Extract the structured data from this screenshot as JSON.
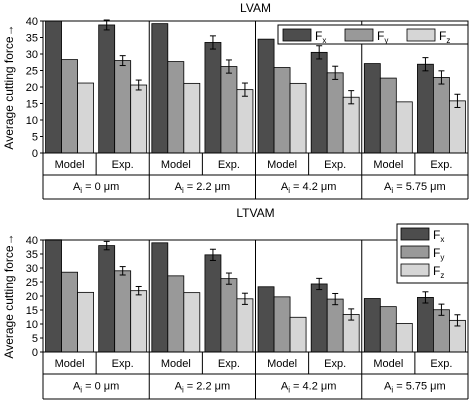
{
  "colors": {
    "fx": "#4d4d4d",
    "fy": "#999999",
    "fz": "#d6d6d6"
  },
  "chart_data": [
    {
      "type": "bar",
      "title": "LVAM",
      "ylabel": "Average cutting force→",
      "ylim": [
        0,
        40
      ],
      "yticks": [
        0,
        5,
        10,
        15,
        20,
        25,
        30,
        35,
        40
      ],
      "grid": false,
      "legend": {
        "position": "top-right",
        "layout": "horizontal"
      },
      "series_labels": [
        {
          "base": "F",
          "sub": "x"
        },
        {
          "base": "F",
          "sub": "y"
        },
        {
          "base": "F",
          "sub": "z"
        }
      ],
      "groups": [
        {
          "label": "A",
          "label_sub": "i",
          "label_rest": " = 0 μm",
          "subgroups": [
            {
              "label": "Model",
              "values": [
                40,
                28.3,
                21.2
              ],
              "errors": null
            },
            {
              "label": "Exp.",
              "values": [
                38.8,
                28,
                20.6
              ],
              "errors": [
                1.5,
                1.5,
                1.5
              ]
            }
          ]
        },
        {
          "label": "A",
          "label_sub": "i",
          "label_rest": " = 2.2 μm",
          "subgroups": [
            {
              "label": "Model",
              "values": [
                39.2,
                27.7,
                21.1
              ],
              "errors": null
            },
            {
              "label": "Exp.",
              "values": [
                33.5,
                26.2,
                19.2
              ],
              "errors": [
                2,
                2,
                2
              ]
            }
          ]
        },
        {
          "label": "A",
          "label_sub": "i",
          "label_rest": " = 4.2 μm",
          "subgroups": [
            {
              "label": "Model",
              "values": [
                34.5,
                25.9,
                21.1
              ],
              "errors": null
            },
            {
              "label": "Exp.",
              "values": [
                30.5,
                24.3,
                16.9
              ],
              "errors": [
                2,
                2,
                2
              ]
            }
          ]
        },
        {
          "label": "A",
          "label_sub": "i",
          "label_rest": " = 5.75 μm",
          "subgroups": [
            {
              "label": "Model",
              "values": [
                27.1,
                22.7,
                15.5
              ],
              "errors": null
            },
            {
              "label": "Exp.",
              "values": [
                26.9,
                22.9,
                15.8
              ],
              "errors": [
                2,
                2,
                2
              ]
            }
          ]
        }
      ]
    },
    {
      "type": "bar",
      "title": "LTVAM",
      "ylabel": "Average cutting force→",
      "ylim": [
        0,
        40
      ],
      "yticks": [
        0,
        5,
        10,
        15,
        20,
        25,
        30,
        35,
        40
      ],
      "grid": false,
      "legend": {
        "position": "top-right",
        "layout": "vertical"
      },
      "series_labels": [
        {
          "base": "F",
          "sub": "x"
        },
        {
          "base": "F",
          "sub": "y"
        },
        {
          "base": "F",
          "sub": "z"
        }
      ],
      "groups": [
        {
          "label": "A",
          "label_sub": "i",
          "label_rest": " = 0 μm",
          "subgroups": [
            {
              "label": "Model",
              "values": [
                40.1,
                28.5,
                21.3
              ],
              "errors": null
            },
            {
              "label": "Exp.",
              "values": [
                38,
                29,
                21.9
              ],
              "errors": [
                1.5,
                1.5,
                1.5
              ]
            }
          ]
        },
        {
          "label": "A",
          "label_sub": "i",
          "label_rest": " = 2.2 μm",
          "subgroups": [
            {
              "label": "Model",
              "values": [
                39,
                27.2,
                21.2
              ],
              "errors": null
            },
            {
              "label": "Exp.",
              "values": [
                34.7,
                26.2,
                19
              ],
              "errors": [
                2,
                2,
                2
              ]
            }
          ]
        },
        {
          "label": "A",
          "label_sub": "i",
          "label_rest": " = 4.2 μm",
          "subgroups": [
            {
              "label": "Model",
              "values": [
                23.3,
                19.7,
                12.4
              ],
              "errors": null
            },
            {
              "label": "Exp.",
              "values": [
                24.3,
                18.9,
                13.4
              ],
              "errors": [
                2,
                2,
                2
              ]
            }
          ]
        },
        {
          "label": "A",
          "label_sub": "i",
          "label_rest": " = 5.75 μm",
          "subgroups": [
            {
              "label": "Model",
              "values": [
                19.1,
                16.2,
                10.2
              ],
              "errors": null
            },
            {
              "label": "Exp.",
              "values": [
                19.5,
                15.1,
                11.3
              ],
              "errors": [
                2,
                2,
                2
              ]
            }
          ]
        }
      ]
    }
  ]
}
